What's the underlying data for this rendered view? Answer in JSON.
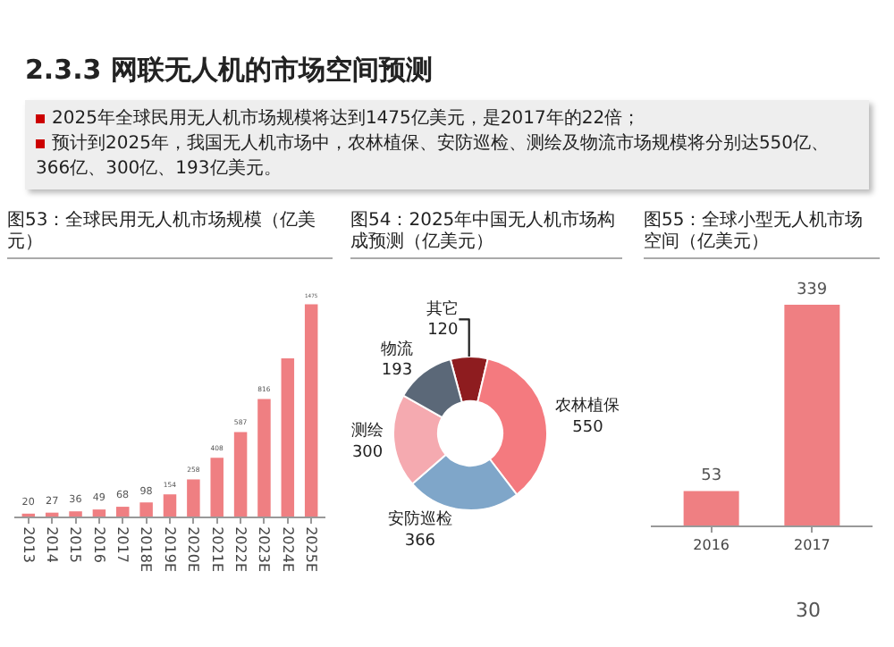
{
  "chart_data": [
    {
      "type": "other",
      "title": "2.3.3 网联无人机的市场空间预测",
      "annotations": [
        "2025年全球民用无人机市场规模将达到1475亿美元，是2017年的22倍；",
        "预计到2025年，我国无人机市场中，农林植保、安防巡检、测绘及物流市场规模将分别达550亿、366亿、300亿、193亿美元。",
        "30"
      ]
    },
    {
      "type": "bar",
      "title": "图53：全球民用无人机市场规模（亿美元）",
      "categories": [
        "2013",
        "2014",
        "2015",
        "2016",
        "2017",
        "2018E",
        "2019E",
        "2020E",
        "2021E",
        "2022E",
        "2023E",
        "2024E",
        "2025E"
      ],
      "values": [
        20,
        27,
        36,
        49,
        68,
        98,
        154,
        258,
        408,
        587,
        816,
        1100,
        1475
      ],
      "value_labels": [
        "20",
        "27",
        "36",
        "49",
        "68",
        "98",
        "154",
        "258",
        "408",
        "587",
        "816",
        null,
        "1475"
      ],
      "color": "#ef7f82"
    },
    {
      "type": "donut",
      "title": "图54：2025年中国无人机市场构成预测（亿美元）",
      "categories": [
        "其它",
        "农林植保",
        "安防巡检",
        "测绘",
        "物流"
      ],
      "values": [
        120,
        550,
        366,
        300,
        193
      ],
      "colors": [
        "#8e1c1f",
        "#f47a7f",
        "#7fa6c9",
        "#f5aab0",
        "#5b6878"
      ],
      "data_labels": true
    },
    {
      "type": "bar",
      "title": "图55：全球小型无人机市场空间（亿美元）",
      "categories": [
        "2016",
        "2017"
      ],
      "values": [
        53,
        339
      ],
      "color": "#ef7f82",
      "data_labels": true
    }
  ]
}
